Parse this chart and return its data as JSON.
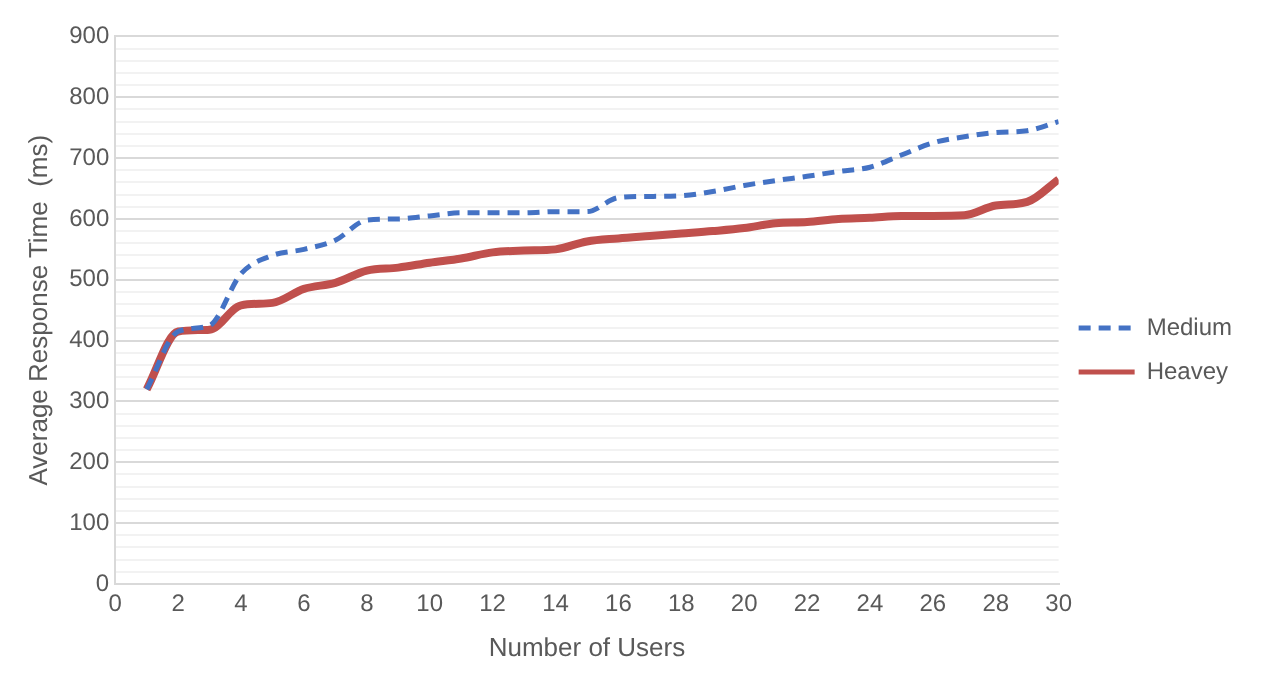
{
  "chart_data": {
    "type": "line",
    "xlabel": "Number of Users",
    "ylabel": "Average Response Time  (ms)",
    "x": [
      1,
      2,
      3,
      4,
      5,
      6,
      7,
      8,
      9,
      10,
      11,
      12,
      13,
      14,
      15,
      16,
      17,
      18,
      19,
      20,
      21,
      22,
      23,
      24,
      25,
      26,
      27,
      28,
      29,
      30
    ],
    "series": [
      {
        "name": "Medium",
        "color": "#4472c4",
        "line_style": "dashed",
        "values": [
          320,
          415,
          425,
          510,
          540,
          550,
          565,
          598,
          600,
          605,
          610,
          610,
          610,
          612,
          612,
          635,
          637,
          638,
          645,
          655,
          663,
          670,
          678,
          685,
          705,
          725,
          735,
          742,
          745,
          760
        ]
      },
      {
        "name": "Heavey",
        "color": "#c0504d",
        "line_style": "solid",
        "values": [
          320,
          415,
          418,
          458,
          462,
          485,
          495,
          515,
          520,
          528,
          535,
          545,
          548,
          550,
          563,
          568,
          572,
          576,
          580,
          585,
          593,
          595,
          600,
          602,
          605,
          605,
          606,
          622,
          628,
          665
        ]
      }
    ],
    "xlim": [
      0,
      30
    ],
    "xticks": [
      0,
      2,
      4,
      6,
      8,
      10,
      12,
      14,
      16,
      18,
      20,
      22,
      24,
      26,
      28,
      30
    ],
    "ylim": [
      0,
      900
    ],
    "yticks": [
      0,
      {
        "value": 20,
        "label": null
      },
      {
        "value": 40,
        "label": null
      },
      {
        "value": 60,
        "label": null
      },
      {
        "value": 80,
        "label": null
      },
      100,
      {
        "value": 120,
        "label": null
      },
      {
        "value": 140,
        "label": null
      },
      {
        "value": 160,
        "label": null
      },
      {
        "value": 180,
        "label": null
      },
      200,
      {
        "value": 220,
        "label": null
      },
      {
        "value": 240,
        "label": null
      },
      {
        "value": 260,
        "label": null
      },
      {
        "value": 280,
        "label": null
      },
      300,
      {
        "value": 320,
        "label": null
      },
      {
        "value": 340,
        "label": null
      },
      {
        "value": 360,
        "label": null
      },
      {
        "value": 380,
        "label": null
      },
      400,
      {
        "value": 420,
        "label": null
      },
      {
        "value": 440,
        "label": null
      },
      {
        "value": 460,
        "label": null
      },
      {
        "value": 480,
        "label": null
      },
      500,
      {
        "value": 520,
        "label": null
      },
      {
        "value": 540,
        "label": null
      },
      {
        "value": 560,
        "label": null
      },
      {
        "value": 580,
        "label": null
      },
      600,
      {
        "value": 620,
        "label": null
      },
      {
        "value": 640,
        "label": null
      },
      {
        "value": 660,
        "label": null
      },
      {
        "value": 680,
        "label": null
      },
      700,
      {
        "value": 720,
        "label": null
      },
      {
        "value": 740,
        "label": null
      },
      {
        "value": 760,
        "label": null
      },
      {
        "value": 780,
        "label": null
      },
      800,
      {
        "value": 820,
        "label": null
      },
      {
        "value": 840,
        "label": null
      },
      {
        "value": 860,
        "label": null
      },
      {
        "value": 880,
        "label": null
      },
      900
    ],
    "grid": "y",
    "legend": "right",
    "marker": "none"
  }
}
